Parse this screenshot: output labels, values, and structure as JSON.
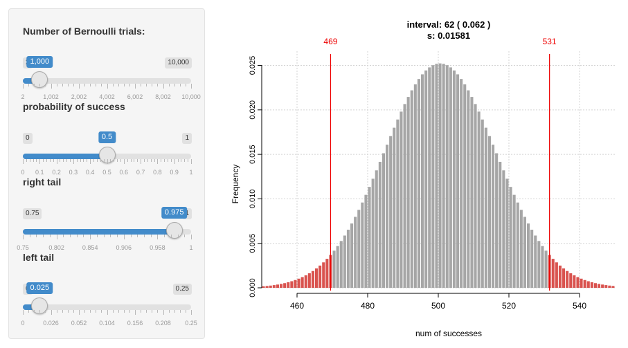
{
  "sliders": [
    {
      "label": "Number of Bernoulli trials:",
      "min_label": "2",
      "max_label": "10,000",
      "value_label": "1,000",
      "fraction": 0.1,
      "tick_labels": [
        "2",
        "1,002",
        "2,002",
        "4,002",
        "6,002",
        "8,002",
        "10,000"
      ]
    },
    {
      "label": "probability of success",
      "min_label": "0",
      "max_label": "1",
      "value_label": "0.5",
      "fraction": 0.5,
      "tick_labels": [
        "0",
        "0.1",
        "0.2",
        "0.3",
        "0.4",
        "0.5",
        "0.6",
        "0.7",
        "0.8",
        "0.9",
        "1"
      ]
    },
    {
      "label": "right tail",
      "min_label": "0.75",
      "max_label": "1",
      "value_label": "0.975",
      "fraction": 0.9,
      "tick_labels": [
        "0.75",
        "0.802",
        "0.854",
        "0.906",
        "0.958",
        "1"
      ]
    },
    {
      "label": "left tail",
      "min_label": "0",
      "max_label": "0.25",
      "value_label": "0.025",
      "fraction": 0.1,
      "tick_labels": [
        "0",
        "0.026",
        "0.052",
        "0.104",
        "0.156",
        "0.208",
        "0.25"
      ]
    }
  ],
  "colors": {
    "accent": "#428bca",
    "bar": "#a6a6a6",
    "tail": "#d9534f",
    "line": "#ee0000"
  },
  "chart_data": {
    "type": "bar",
    "title_line1": "interval: 62 ( 0.062 )",
    "title_line2": "s: 0.01581",
    "xlabel": "num of successes",
    "ylabel": "Frequency",
    "xlim": [
      450,
      550
    ],
    "ylim": [
      0,
      0.025
    ],
    "x_ticks": [
      "460",
      "480",
      "500",
      "520",
      "540"
    ],
    "y_ticks": [
      "0.000",
      "0.005",
      "0.010",
      "0.015",
      "0.020",
      "0.025"
    ],
    "lower_cutoff": 469,
    "upper_cutoff": 531,
    "lower_cutoff_label": "469",
    "upper_cutoff_label": "531",
    "grid": true,
    "distribution": {
      "name": "binomial",
      "n": 1000,
      "p": 0.5,
      "x_from": 450,
      "x_to": 549
    }
  }
}
